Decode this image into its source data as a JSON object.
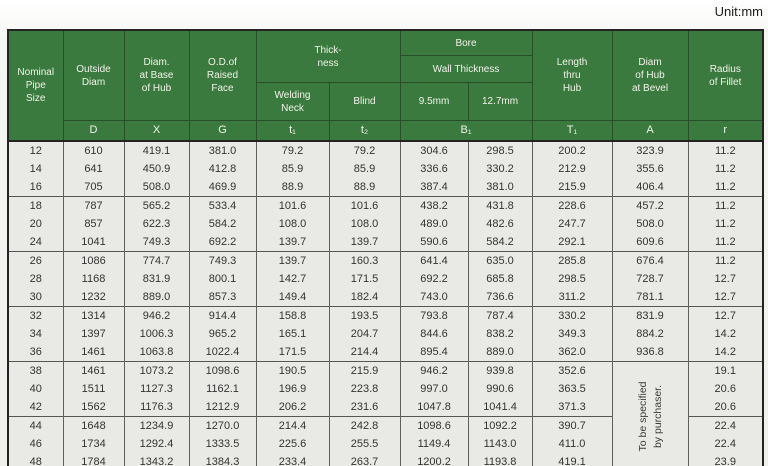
{
  "unit_label": "Unit:mm",
  "table": {
    "header": {
      "nominal_pipe_size": "Nominal\nPipe\nSize",
      "outside_diam": "Outside\nDiam",
      "diam_at_base_of_hub": "Diam.\nat Base\nof Hub",
      "od_of_raised_face": "O.D.of\nRaised\nFace",
      "thickness": "Thick-\nness",
      "bore": "Bore",
      "wall_thickness": "Wall Thickness",
      "welding_neck": "Welding\nNeck",
      "blind": "Blind",
      "bore_9_5mm": "9.5mm",
      "bore_12_7mm": "12.7mm",
      "length_thru_hub": "Length\nthru\nHub",
      "diam_of_hub_at_bevel": "Diam\nof Hub\nat Bevel",
      "radius_of_fillet": "Radius\nof Fillet",
      "symbols": {
        "d": "D",
        "x": "X",
        "g": "G",
        "t1_small": "t₁",
        "t2_small": "t₂",
        "b1": "B₁",
        "t1_cap": "T₁",
        "a": "A",
        "r": "r"
      }
    },
    "group_start_rows": [
      3,
      6,
      9,
      12,
      15
    ],
    "merged_note": {
      "start_row_index": 12,
      "row_span": 6,
      "text": "To be specified\nby purchaser."
    },
    "rows": [
      [
        "12",
        "610",
        "419.1",
        "381.0",
        "79.2",
        "79.2",
        "304.6",
        "298.5",
        "200.2",
        "323.9",
        "11.2"
      ],
      [
        "14",
        "641",
        "450.9",
        "412.8",
        "85.9",
        "85.9",
        "336.6",
        "330.2",
        "212.9",
        "355.6",
        "11.2"
      ],
      [
        "16",
        "705",
        "508.0",
        "469.9",
        "88.9",
        "88.9",
        "387.4",
        "381.0",
        "215.9",
        "406.4",
        "11.2"
      ],
      [
        "18",
        "787",
        "565.2",
        "533.4",
        "101.6",
        "101.6",
        "438.2",
        "431.8",
        "228.6",
        "457.2",
        "11.2"
      ],
      [
        "20",
        "857",
        "622.3",
        "584.2",
        "108.0",
        "108.0",
        "489.0",
        "482.6",
        "247.7",
        "508.0",
        "11.2"
      ],
      [
        "24",
        "1041",
        "749.3",
        "692.2",
        "139.7",
        "139.7",
        "590.6",
        "584.2",
        "292.1",
        "609.6",
        "11.2"
      ],
      [
        "26",
        "1086",
        "774.7",
        "749.3",
        "139.7",
        "160.3",
        "641.4",
        "635.0",
        "285.8",
        "676.4",
        "11.2"
      ],
      [
        "28",
        "1168",
        "831.9",
        "800.1",
        "142.7",
        "171.5",
        "692.2",
        "685.8",
        "298.5",
        "728.7",
        "12.7"
      ],
      [
        "30",
        "1232",
        "889.0",
        "857.3",
        "149.4",
        "182.4",
        "743.0",
        "736.6",
        "311.2",
        "781.1",
        "12.7"
      ],
      [
        "32",
        "1314",
        "946.2",
        "914.4",
        "158.8",
        "193.5",
        "793.8",
        "787.4",
        "330.2",
        "831.9",
        "12.7"
      ],
      [
        "34",
        "1397",
        "1006.3",
        "965.2",
        "165.1",
        "204.7",
        "844.6",
        "838.2",
        "349.3",
        "884.2",
        "14.2"
      ],
      [
        "36",
        "1461",
        "1063.8",
        "1022.4",
        "171.5",
        "214.4",
        "895.4",
        "889.0",
        "362.0",
        "936.8",
        "14.2"
      ],
      [
        "38",
        "1461",
        "1073.2",
        "1098.6",
        "190.5",
        "215.9",
        "946.2",
        "939.8",
        "352.6",
        "19.1"
      ],
      [
        "40",
        "1511",
        "1127.3",
        "1162.1",
        "196.9",
        "223.8",
        "997.0",
        "990.6",
        "363.5",
        "20.6"
      ],
      [
        "42",
        "1562",
        "1176.3",
        "1212.9",
        "206.2",
        "231.6",
        "1047.8",
        "1041.4",
        "371.3",
        "20.6"
      ],
      [
        "44",
        "1648",
        "1234.9",
        "1270.0",
        "214.4",
        "242.8",
        "1098.6",
        "1092.2",
        "390.7",
        "22.4"
      ],
      [
        "46",
        "1734",
        "1292.4",
        "1333.5",
        "225.6",
        "255.5",
        "1149.4",
        "1143.0",
        "411.0",
        "22.4"
      ],
      [
        "48",
        "1784",
        "1343.2",
        "1384.3",
        "233.4",
        "263.7",
        "1200.2",
        "1193.8",
        "419.1",
        "23.9"
      ]
    ]
  }
}
